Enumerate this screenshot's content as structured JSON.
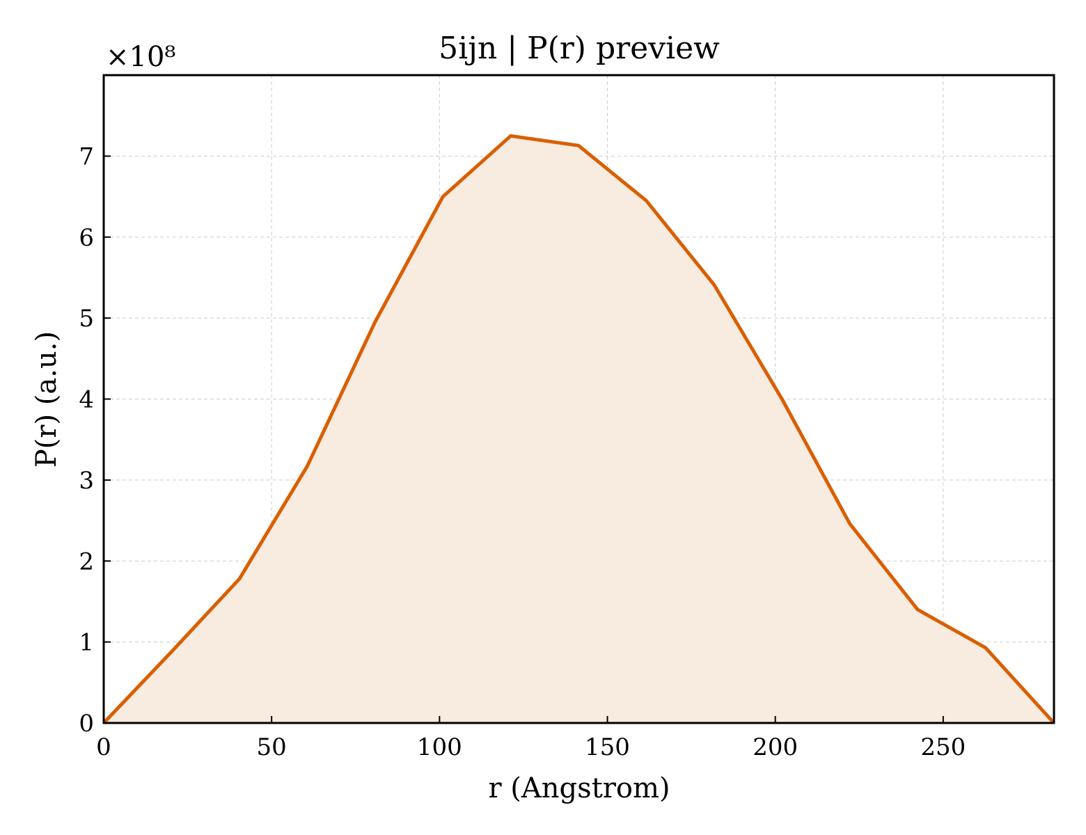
{
  "chart_data": {
    "type": "area",
    "title": "5ijn | P(r) preview",
    "xlabel": "r (Angstrom)",
    "ylabel": "P(r) (a.u.)",
    "y_multiplier_label": "×10⁸",
    "xlim": [
      0,
      283
    ],
    "ylim": [
      0,
      8.0
    ],
    "xticks": [
      0,
      50,
      100,
      150,
      200,
      250
    ],
    "yticks": [
      0,
      1,
      2,
      3,
      4,
      5,
      6,
      7
    ],
    "grid": true,
    "line_color": "#d95f02",
    "fill_color": "#f8ebe0",
    "series": [
      {
        "x": [
          0,
          20.2,
          40.4,
          60.6,
          80.8,
          101,
          121.2,
          141.4,
          161.6,
          181.8,
          202,
          222.2,
          242.4,
          262.6,
          283
        ],
        "y": [
          0,
          0.88,
          1.78,
          3.17,
          4.95,
          6.5,
          7.25,
          7.13,
          6.45,
          5.41,
          4.0,
          2.46,
          1.4,
          0.93,
          0
        ]
      }
    ]
  }
}
